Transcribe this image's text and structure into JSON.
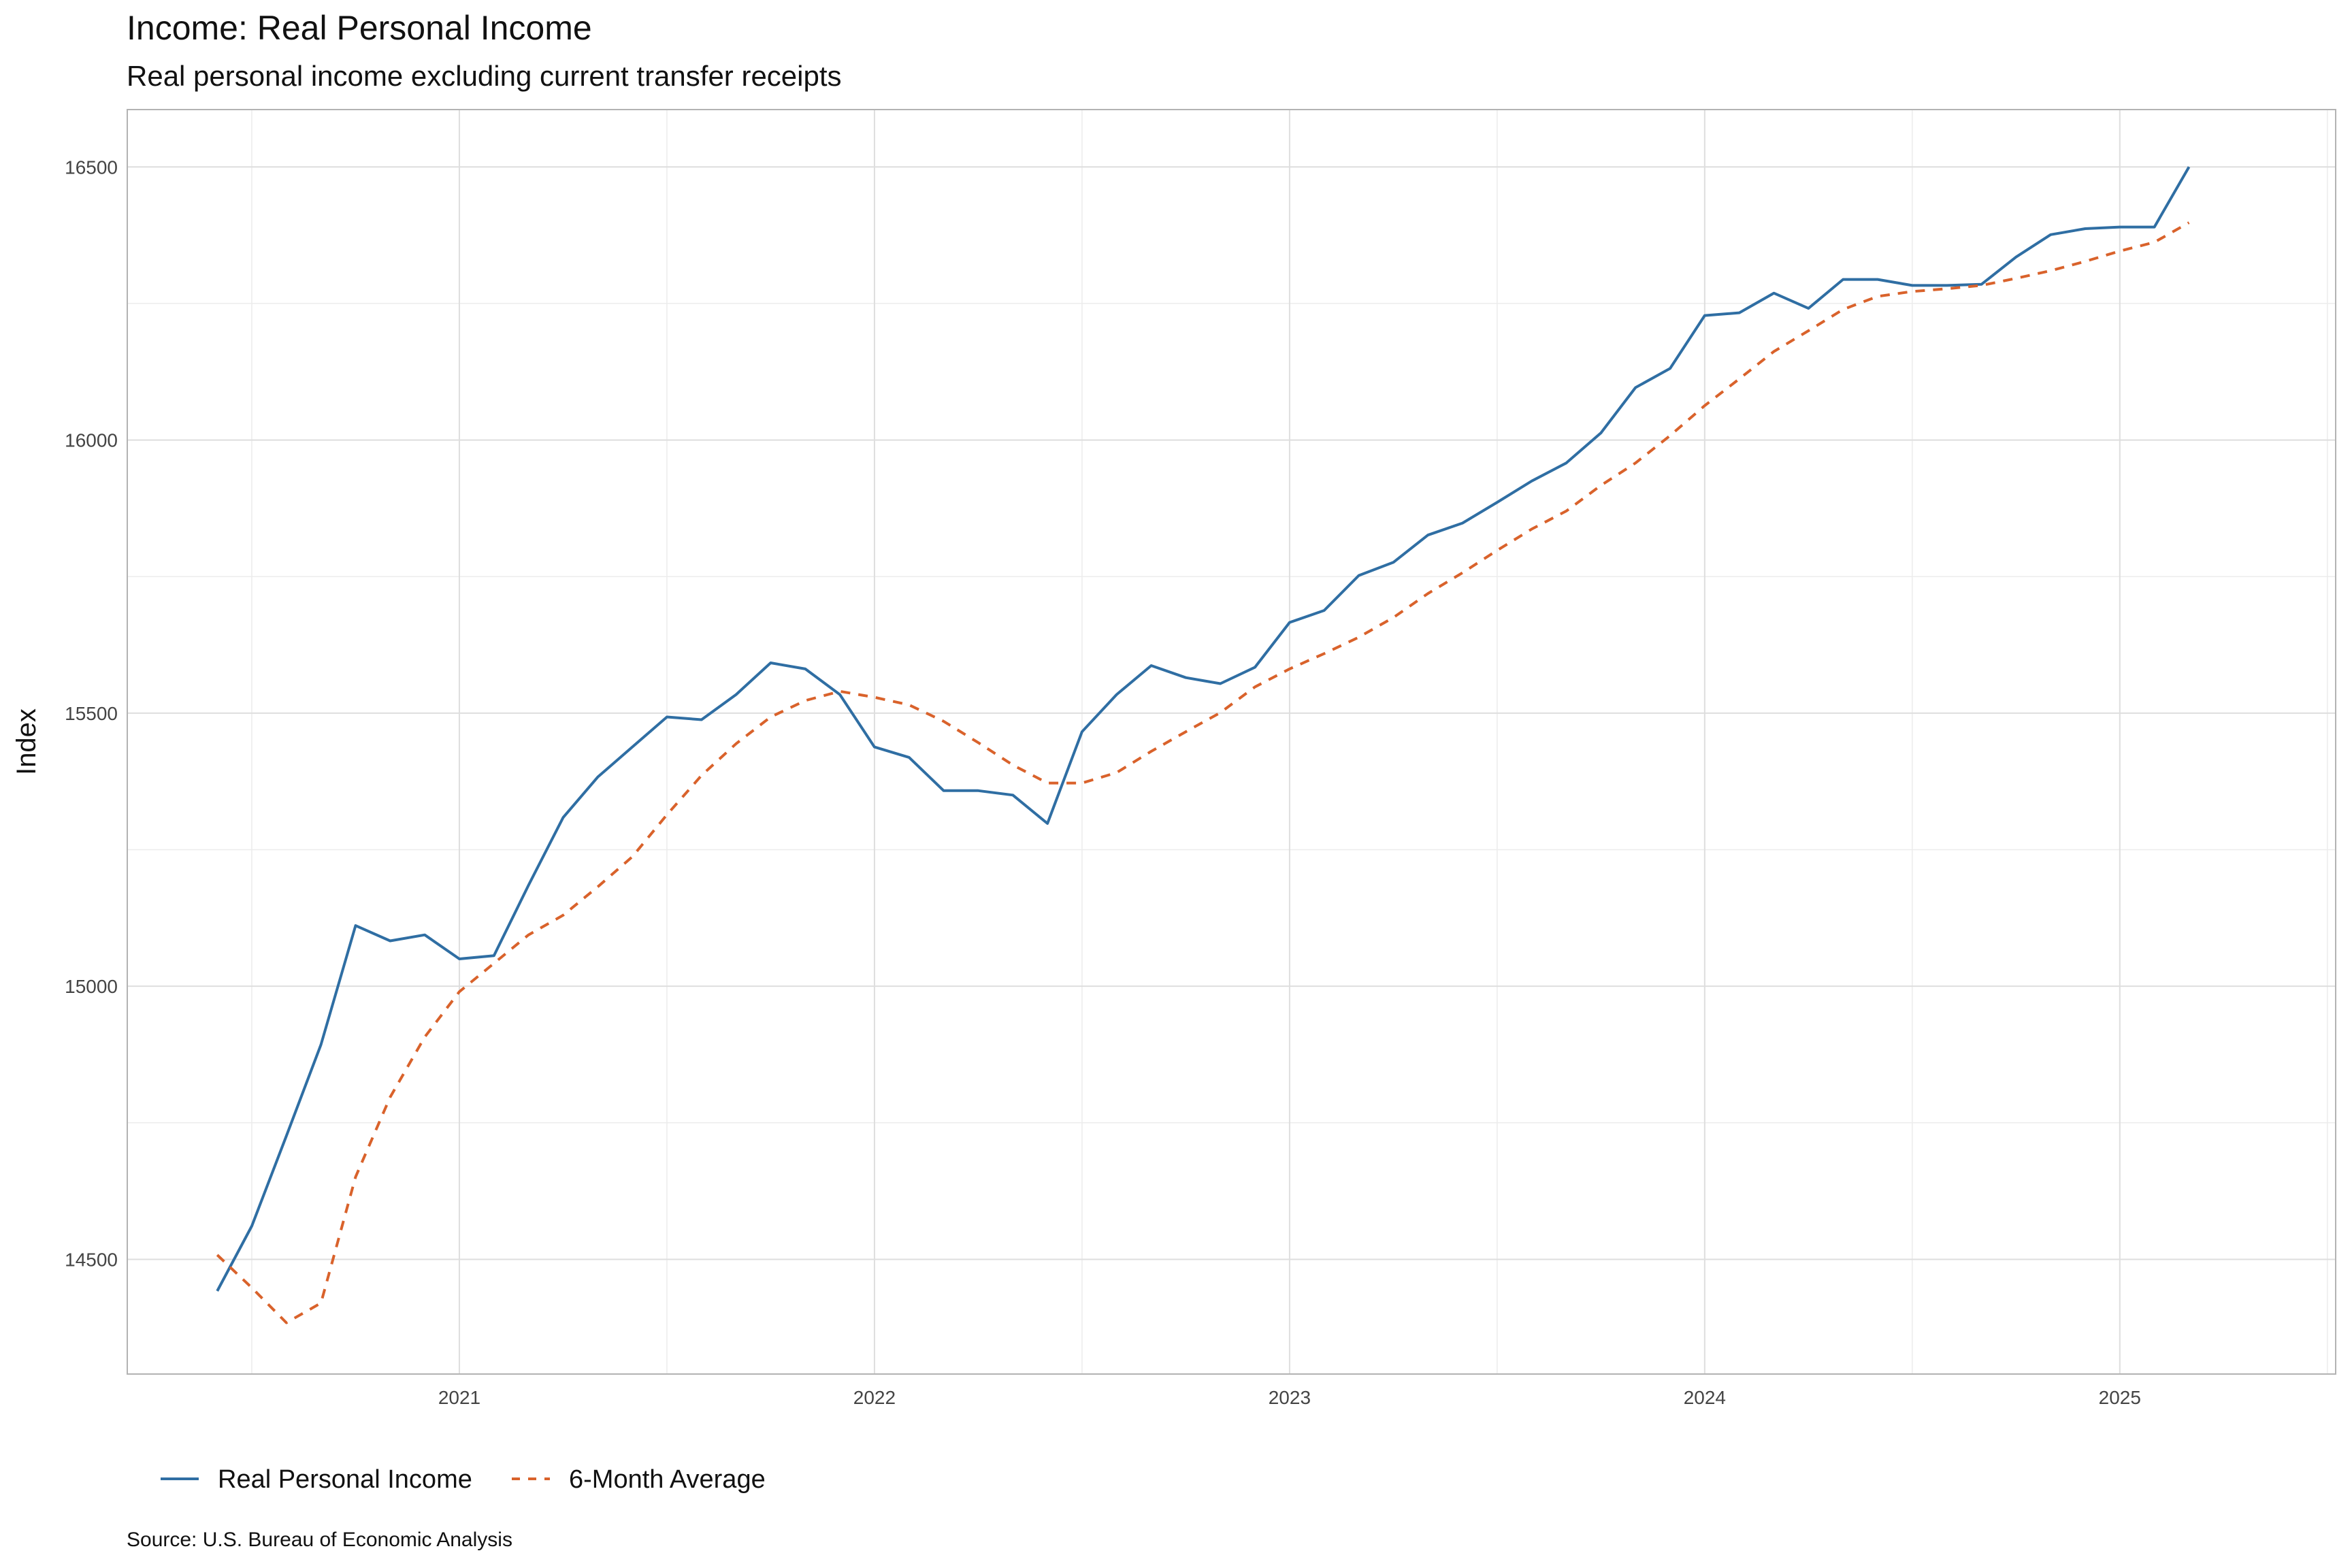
{
  "chart_data": {
    "type": "line",
    "title": "Income: Real Personal Income",
    "subtitle": "Real personal income excluding current transfer receipts",
    "xlabel": "",
    "ylabel": "Index",
    "caption": "Source:  U.S. Bureau of Economic Analysis",
    "ylim": [
      14290,
      16605
    ],
    "xlim": [
      2020.2,
      2025.52
    ],
    "grid": true,
    "legend_position": "bottom-left",
    "y_ticks": [
      "14500",
      "15000",
      "15500",
      "16000",
      "16500"
    ],
    "x_ticks": [
      "2021",
      "2022",
      "2023",
      "2024",
      "2025"
    ],
    "start": "2020-06",
    "series": [
      {
        "name": "Real Personal Income",
        "color": "#2f6ea3",
        "style": "solid",
        "values": [
          14442,
          14561,
          14726,
          14893,
          15111,
          15083,
          15094,
          15050,
          15056,
          15185,
          15309,
          15383,
          15438,
          15493,
          15488,
          15534,
          15592,
          15581,
          15534,
          15438,
          15419,
          15358,
          15358,
          15350,
          15298,
          15466,
          15534,
          15587,
          15565,
          15554,
          15584,
          15666,
          15688,
          15752,
          15776,
          15826,
          15848,
          15886,
          15925,
          15958,
          16013,
          16096,
          16131,
          16228,
          16233,
          16269,
          16241,
          16294,
          16294,
          16283,
          16283,
          16285,
          16335,
          16376,
          16387,
          16390,
          16390,
          16500
        ]
      },
      {
        "name": "6-Month Average",
        "color": "#d9622b",
        "style": "dashed",
        "values": [
          14508,
          14448,
          14384,
          14420,
          14651,
          14797,
          14907,
          14990,
          15042,
          15094,
          15130,
          15182,
          15237,
          15314,
          15386,
          15444,
          15493,
          15523,
          15540,
          15529,
          15515,
          15485,
          15446,
          15405,
          15372,
          15372,
          15391,
          15430,
          15466,
          15501,
          15548,
          15581,
          15609,
          15639,
          15675,
          15719,
          15757,
          15798,
          15837,
          15870,
          15917,
          15958,
          16008,
          16063,
          16112,
          16162,
          16200,
          16239,
          16263,
          16272,
          16277,
          16283,
          16296,
          16310,
          16327,
          16346,
          16362,
          16398
        ]
      }
    ]
  }
}
